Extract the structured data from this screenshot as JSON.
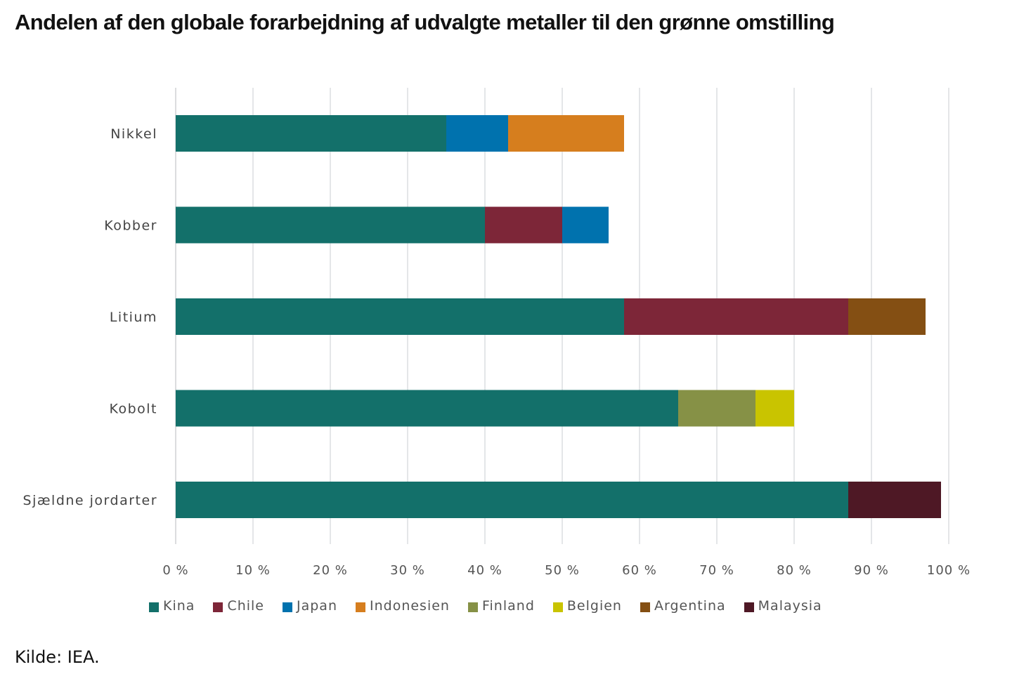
{
  "title": "Andelen af den globale forarbejdning af udvalgte metaller til den grønne omstilling",
  "source": "Kilde: IEA.",
  "chart_data": {
    "type": "bar",
    "orientation": "horizontal",
    "stacked": true,
    "title": "Andelen af den globale forarbejdning af udvalgte metaller til den grønne omstilling",
    "xlabel": "",
    "ylabel": "",
    "xlim": [
      0,
      100
    ],
    "grid": true,
    "legend_position": "bottom",
    "categories": [
      "Nikkel",
      "Kobber",
      "Litium",
      "Kobolt",
      "Sjældne jordarter"
    ],
    "x_ticks": [
      0,
      10,
      20,
      30,
      40,
      50,
      60,
      70,
      80,
      90,
      100
    ],
    "x_tick_labels": [
      "0 %",
      "10 %",
      "20 %",
      "30 %",
      "40 %",
      "50 %",
      "60 %",
      "70 %",
      "80 %",
      "90 %",
      "100 %"
    ],
    "series": [
      {
        "name": "Kina",
        "color": "#13706a",
        "values": [
          35,
          40,
          58,
          65,
          87
        ]
      },
      {
        "name": "Chile",
        "color": "#7d2638",
        "values": [
          0,
          10,
          29,
          0,
          0
        ]
      },
      {
        "name": "Japan",
        "color": "#0072ae",
        "values": [
          8,
          6,
          0,
          0,
          0
        ]
      },
      {
        "name": "Indonesien",
        "color": "#d67e1e",
        "values": [
          15,
          0,
          0,
          0,
          0
        ]
      },
      {
        "name": "Finland",
        "color": "#869146",
        "values": [
          0,
          0,
          0,
          10,
          0
        ]
      },
      {
        "name": "Belgien",
        "color": "#c9c400",
        "values": [
          0,
          0,
          0,
          5,
          0
        ]
      },
      {
        "name": "Argentina",
        "color": "#844f13",
        "values": [
          0,
          0,
          10,
          0,
          0
        ]
      },
      {
        "name": "Malaysia",
        "color": "#4e1825",
        "values": [
          0,
          0,
          0,
          0,
          12
        ]
      }
    ]
  }
}
